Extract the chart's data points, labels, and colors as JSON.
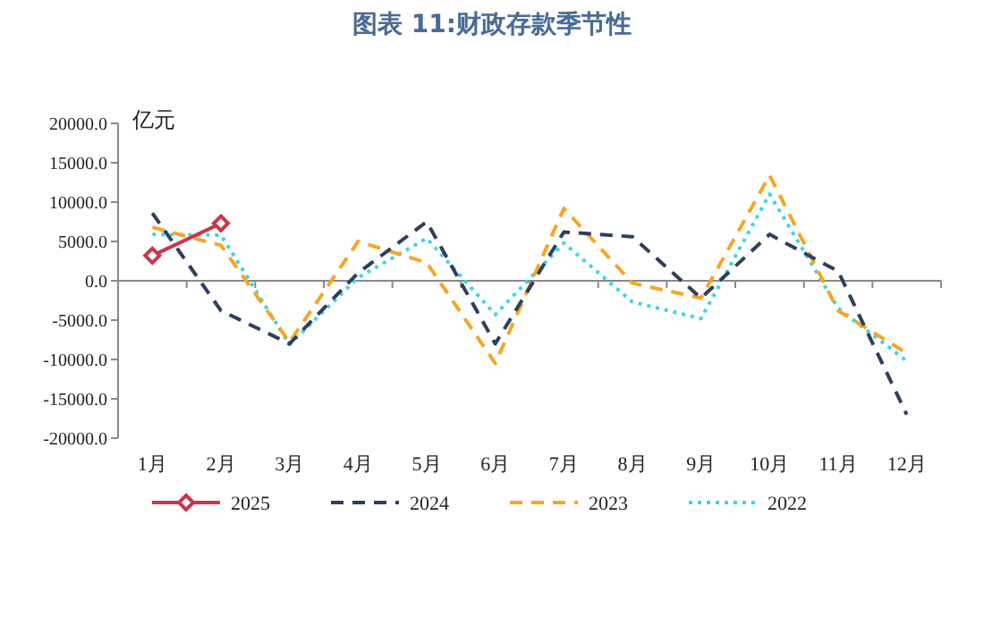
{
  "chart_data": {
    "type": "line",
    "title": "图表 11:财政存款季节性",
    "ylabel": "亿元",
    "categories": [
      "1月",
      "2月",
      "3月",
      "4月",
      "5月",
      "6月",
      "7月",
      "8月",
      "9月",
      "10月",
      "11月",
      "12月"
    ],
    "ylim": [
      -20000,
      20000
    ],
    "yticks": [
      {
        "value": -20000,
        "label": "-20000.0"
      },
      {
        "value": -15000,
        "label": "-15000.0"
      },
      {
        "value": -10000,
        "label": "-10000.0"
      },
      {
        "value": -5000,
        "label": "-5000.0"
      },
      {
        "value": 0,
        "label": "0.0"
      },
      {
        "value": 5000,
        "label": "5000.0"
      },
      {
        "value": 10000,
        "label": "10000.0"
      },
      {
        "value": 15000,
        "label": "15000.0"
      },
      {
        "value": 20000,
        "label": "20000.0"
      }
    ],
    "legend": "bottom",
    "series": [
      {
        "name": "2025",
        "color": "#c8374a",
        "marker": "diamond",
        "line_style": "solid",
        "values": [
          3200,
          7300,
          null,
          null,
          null,
          null,
          null,
          null,
          null,
          null,
          null,
          null
        ]
      },
      {
        "name": "2024",
        "color": "#2e3f5c",
        "marker": "none",
        "line_style": "dashed",
        "values": [
          8600,
          -3800,
          -8000,
          1000,
          7500,
          -8000,
          6200,
          5600,
          -2200,
          5900,
          1200,
          -17000
        ]
      },
      {
        "name": "2023",
        "color": "#f5a623",
        "marker": "none",
        "line_style": "dashed",
        "values": [
          6800,
          4500,
          -7800,
          5000,
          2300,
          -10500,
          9200,
          -300,
          -2200,
          13400,
          -3800,
          -9200
        ]
      },
      {
        "name": "2022",
        "color": "#3fd6df",
        "marker": "none",
        "line_style": "dotted",
        "values": [
          5900,
          5800,
          -8100,
          400,
          5400,
          -4300,
          4800,
          -2700,
          -4800,
          11000,
          -3500,
          -10200
        ]
      }
    ]
  }
}
